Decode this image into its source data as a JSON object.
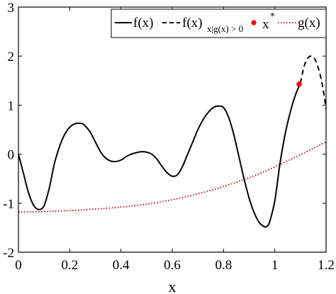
{
  "chart_data": {
    "type": "line",
    "xlabel": "x",
    "ylabel": "",
    "title": "",
    "xlim": [
      0,
      1.2
    ],
    "ylim": [
      -2,
      3
    ],
    "xticks": [
      "0",
      "0.2",
      "0.4",
      "0.6",
      "0.8",
      "1",
      "1.2"
    ],
    "yticks": [
      "-2",
      "-1",
      "0",
      "1",
      "2",
      "3"
    ],
    "grid": false,
    "legend_placement": "top",
    "series": [
      {
        "name": "f(x)",
        "style": "solid",
        "color": "#000000",
        "x": [
          0,
          0.02,
          0.04,
          0.06,
          0.08,
          0.1,
          0.12,
          0.14,
          0.16,
          0.18,
          0.2,
          0.22,
          0.24,
          0.25,
          0.26,
          0.28,
          0.3,
          0.32,
          0.34,
          0.36,
          0.38,
          0.4,
          0.42,
          0.44,
          0.46,
          0.48,
          0.5,
          0.52,
          0.54,
          0.56,
          0.58,
          0.6,
          0.62,
          0.64,
          0.66,
          0.68,
          0.7,
          0.72,
          0.74,
          0.76,
          0.78,
          0.8,
          0.82,
          0.84,
          0.86,
          0.88,
          0.9,
          0.92,
          0.94,
          0.96,
          0.97,
          0.98,
          1.0,
          1.02,
          1.04,
          1.06,
          1.08,
          1.1
        ],
        "y": [
          0.0,
          -0.4,
          -0.8,
          -1.05,
          -1.13,
          -1.05,
          -0.7,
          -0.2,
          0.15,
          0.4,
          0.55,
          0.62,
          0.63,
          0.62,
          0.58,
          0.45,
          0.25,
          0.05,
          -0.08,
          -0.14,
          -0.15,
          -0.12,
          -0.05,
          0.0,
          0.03,
          0.05,
          0.04,
          0.0,
          -0.1,
          -0.25,
          -0.38,
          -0.45,
          -0.42,
          -0.25,
          0.0,
          0.25,
          0.5,
          0.7,
          0.85,
          0.95,
          0.98,
          0.95,
          0.75,
          0.4,
          -0.05,
          -0.5,
          -0.9,
          -1.2,
          -1.4,
          -1.48,
          -1.47,
          -1.38,
          -0.95,
          -0.2,
          0.4,
          0.85,
          1.2,
          1.45
        ]
      },
      {
        "name": "f(x)_x|g(x) > 0",
        "style": "dashed",
        "color": "#000000",
        "x": [
          1.1,
          1.11,
          1.12,
          1.13,
          1.14,
          1.15,
          1.16,
          1.17,
          1.18,
          1.19,
          1.2
        ],
        "y": [
          1.45,
          1.7,
          1.88,
          1.97,
          2.0,
          1.98,
          1.9,
          1.75,
          1.55,
          1.28,
          0.92
        ]
      },
      {
        "name": "g(x)",
        "style": "dotted",
        "color": "#cc0000",
        "x": [
          0,
          0.1,
          0.2,
          0.3,
          0.4,
          0.5,
          0.6,
          0.7,
          0.8,
          0.9,
          1.0,
          1.1,
          1.2
        ],
        "y": [
          -1.18,
          -1.17,
          -1.15,
          -1.12,
          -1.08,
          -1.02,
          -0.93,
          -0.81,
          -0.66,
          -0.48,
          -0.26,
          -0.01,
          0.25
        ]
      }
    ],
    "points": [
      {
        "name": "x*",
        "x": 1.095,
        "y": 1.43,
        "color": "#ff0000"
      }
    ],
    "legend": {
      "entry1": "f(x)",
      "entry2_main": "f(x)",
      "entry2_sub": "x|g(x) > 0",
      "entry3_main": "x",
      "entry3_sup": "*",
      "entry4": "g(x)"
    }
  }
}
